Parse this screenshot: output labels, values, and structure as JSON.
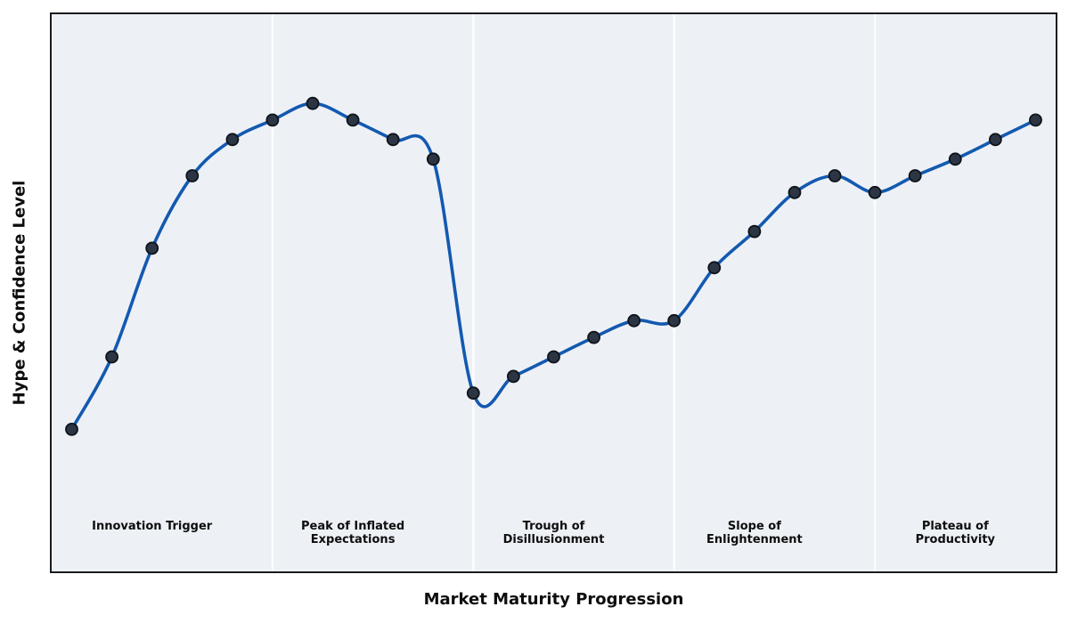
{
  "chart_data": {
    "type": "line",
    "title": "",
    "xlabel": "Market Maturity Progression",
    "ylabel": "Hype & Confidence Level",
    "x": [
      0,
      1,
      2,
      3,
      4,
      5,
      6,
      7,
      8,
      9,
      10,
      11,
      12,
      13,
      14,
      15,
      16,
      17,
      18,
      19,
      20,
      21,
      22,
      23,
      24
    ],
    "values": [
      25.5,
      38.5,
      58,
      71,
      77.5,
      81,
      84,
      81,
      77.5,
      74,
      32,
      35,
      38.5,
      42,
      45,
      45,
      54.5,
      61,
      68,
      71,
      68,
      71,
      74,
      77.5,
      81
    ],
    "xlim": [
      -0.5,
      24.5
    ],
    "ylim": [
      0,
      100
    ],
    "grid": false,
    "legend": "none",
    "axis_ticks": "none",
    "smoothing": "cubic-spline",
    "line_color": "#1459b0",
    "line_width": 3.6,
    "marker_color": "#2c3543",
    "marker_edge_color": "#0e131a",
    "marker_radius": 6.5,
    "plot_bg_color": "#edf1f6",
    "divider_color": "#fbfcfe",
    "border_color": "#1b1b1b",
    "phase_boundaries": [
      5,
      10,
      15,
      20
    ],
    "phases": [
      {
        "label": "Innovation Trigger",
        "label_x": 2
      },
      {
        "label": "Peak of Inflated\nExpectations",
        "label_x": 7
      },
      {
        "label": "Trough of\nDisillusionment",
        "label_x": 12
      },
      {
        "label": "Slope of\nEnlightenment",
        "label_x": 17
      },
      {
        "label": "Plateau of\nProductivity",
        "label_x": 22
      }
    ]
  }
}
